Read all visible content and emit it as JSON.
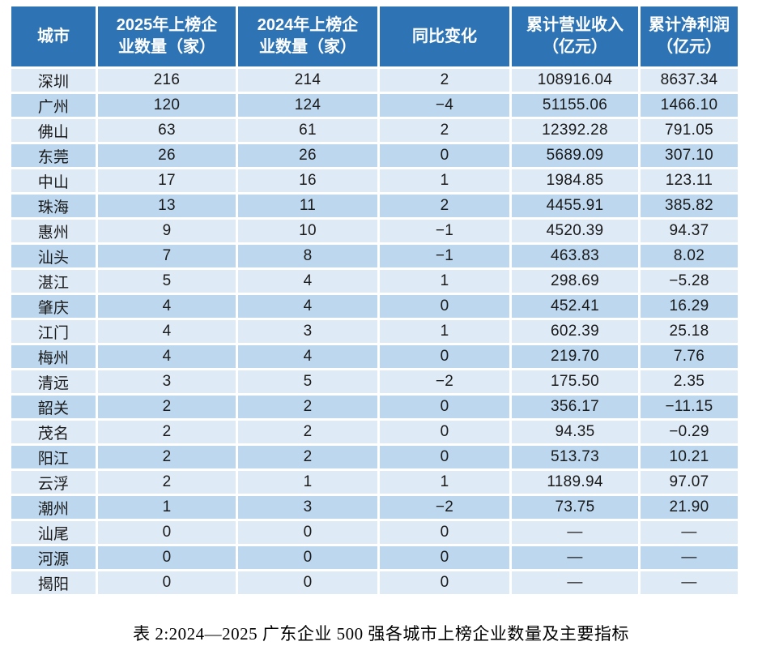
{
  "chart_data": {
    "type": "table",
    "title": "表 2:2024—2025 广东企业 500 强各城市上榜企业数量及主要指标",
    "columns": [
      "城市",
      "2025年上榜企\n业数量（家）",
      "2024年上榜企\n业数量（家）",
      "同比变化",
      "累计营业收入\n（亿元）",
      "累计净利润\n（亿元）"
    ],
    "column_keys": [
      "city",
      "count_2025",
      "count_2024",
      "yoy_change",
      "total_revenue",
      "total_net_profit"
    ],
    "rows": [
      [
        "深圳",
        "216",
        "214",
        "2",
        "108916.04",
        "8637.34"
      ],
      [
        "广州",
        "120",
        "124",
        "−4",
        "51155.06",
        "1466.10"
      ],
      [
        "佛山",
        "63",
        "61",
        "2",
        "12392.28",
        "791.05"
      ],
      [
        "东莞",
        "26",
        "26",
        "0",
        "5689.09",
        "307.10"
      ],
      [
        "中山",
        "17",
        "16",
        "1",
        "1984.85",
        "123.11"
      ],
      [
        "珠海",
        "13",
        "11",
        "2",
        "4455.91",
        "385.82"
      ],
      [
        "惠州",
        "9",
        "10",
        "−1",
        "4520.39",
        "94.37"
      ],
      [
        "汕头",
        "7",
        "8",
        "−1",
        "463.83",
        "8.02"
      ],
      [
        "湛江",
        "5",
        "4",
        "1",
        "298.69",
        "−5.28"
      ],
      [
        "肇庆",
        "4",
        "4",
        "0",
        "452.41",
        "16.29"
      ],
      [
        "江门",
        "4",
        "3",
        "1",
        "602.39",
        "25.18"
      ],
      [
        "梅州",
        "4",
        "4",
        "0",
        "219.70",
        "7.76"
      ],
      [
        "清远",
        "3",
        "5",
        "−2",
        "175.50",
        "2.35"
      ],
      [
        "韶关",
        "2",
        "2",
        "0",
        "356.17",
        "−11.15"
      ],
      [
        "茂名",
        "2",
        "2",
        "0",
        "94.35",
        "−0.29"
      ],
      [
        "阳江",
        "2",
        "2",
        "0",
        "513.73",
        "10.21"
      ],
      [
        "云浮",
        "2",
        "1",
        "1",
        "1189.94",
        "97.07"
      ],
      [
        "潮州",
        "1",
        "3",
        "−2",
        "73.75",
        "21.90"
      ],
      [
        "汕尾",
        "0",
        "0",
        "0",
        "—",
        "—"
      ],
      [
        "河源",
        "0",
        "0",
        "0",
        "—",
        "—"
      ],
      [
        "揭阳",
        "0",
        "0",
        "0",
        "—",
        "—"
      ]
    ],
    "colors": {
      "header_bg": "#2E74B5",
      "header_text": "#FFFFFF",
      "row_odd_bg": "#DEEAF6",
      "row_even_bg": "#BDD7EE",
      "cell_text": "#1A1A1A",
      "caption_text": "#000000",
      "page_bg": "#FFFFFF"
    }
  }
}
